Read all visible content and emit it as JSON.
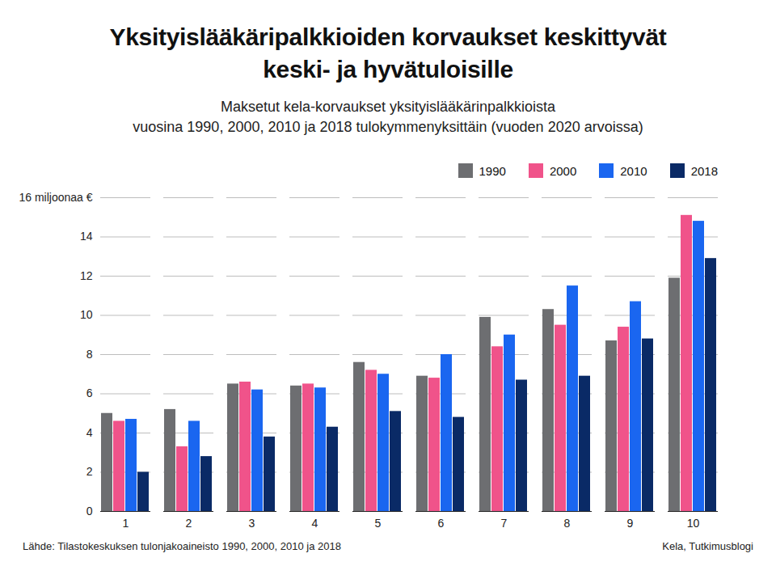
{
  "chart_data": {
    "type": "bar",
    "title": "Yksityislääkäripalkkioiden korvaukset keskittyvät\nkeski- ja hyvätuloisille",
    "subtitle": "Maksetut kela-korvaukset yksityislääkärinpalkkioista\nvuosina 1990, 2000, 2010 ja 2018 tulokymmenyksittäin (vuoden 2020 arvoissa)",
    "source": "Lähde: Tilastokeskuksen tulonjakoaineisto 1990, 2000, 2010 ja 2018",
    "credit": "Kela, Tutkimusblogi",
    "categories": [
      "1",
      "2",
      "3",
      "4",
      "5",
      "6",
      "7",
      "8",
      "9",
      "10"
    ],
    "series": [
      {
        "name": "1990",
        "color": "#6d6e71",
        "values": [
          5.0,
          5.2,
          6.5,
          6.4,
          7.6,
          6.9,
          9.9,
          10.3,
          8.7,
          11.9
        ]
      },
      {
        "name": "2000",
        "color": "#f0538a",
        "values": [
          4.6,
          3.3,
          6.6,
          6.5,
          7.2,
          6.8,
          8.4,
          9.5,
          9.4,
          15.1
        ]
      },
      {
        "name": "2010",
        "color": "#1a66f0",
        "values": [
          4.7,
          4.6,
          6.2,
          6.3,
          7.0,
          8.0,
          9.0,
          11.5,
          10.7,
          14.8
        ]
      },
      {
        "name": "2018",
        "color": "#0a2a66",
        "values": [
          2.0,
          2.8,
          3.8,
          4.3,
          5.1,
          4.8,
          6.7,
          6.9,
          8.8,
          12.9
        ]
      }
    ],
    "ylim": [
      0,
      16
    ],
    "yticks": [
      0,
      2,
      4,
      6,
      8,
      10,
      12,
      14,
      {
        "value": 16,
        "label": "16 miljoonaa €"
      }
    ],
    "grid": true,
    "legend": "top-right"
  }
}
